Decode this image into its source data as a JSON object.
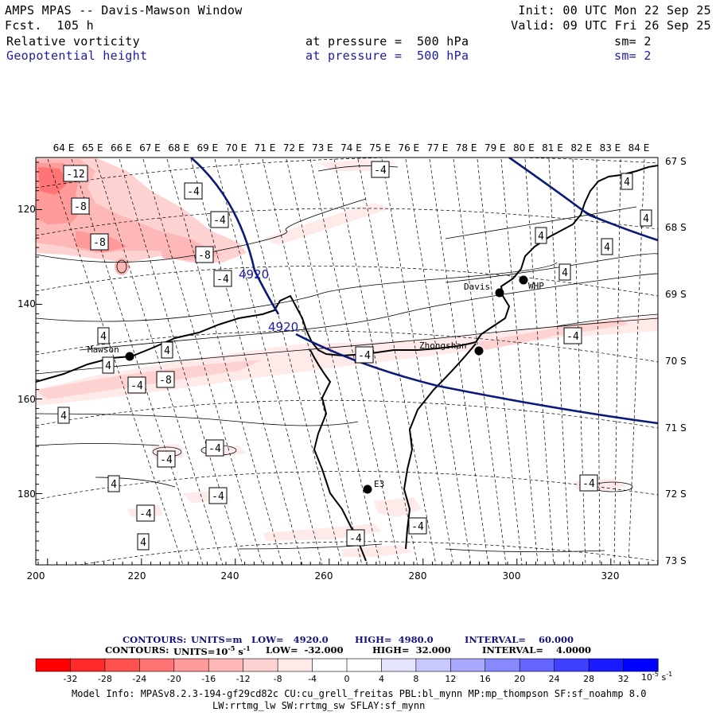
{
  "header": {
    "title": "AMPS MPAS -- Davis-Mawson Window",
    "forecast": "Fcst.  105 h",
    "init": "Init: 00 UTC Mon 22 Sep 25",
    "valid": "Valid: 09 UTC Fri 26 Sep 25",
    "field1": {
      "name": "Relative vorticity",
      "level": "at pressure =  500 hPa",
      "smooth": "sm= 2"
    },
    "field2": {
      "name": "Geopotential height",
      "level": "at pressure =  500 hPa",
      "smooth": "sm= 2"
    }
  },
  "map": {
    "top_longitudes": [
      "64 E",
      "65 E",
      "66 E",
      "67 E",
      "68 E",
      "69 E",
      "70 E",
      "71 E",
      "72 E",
      "73 E",
      "74 E",
      "75 E",
      "76 E",
      "77 E",
      "78 E",
      "79 E",
      "80 E",
      "81 E",
      "82 E",
      "83 E",
      "84 E"
    ],
    "right_latitudes": [
      "67 S",
      "68 S",
      "69 S",
      "70 S",
      "71 S",
      "72 S",
      "73 S"
    ],
    "left_ticks": [
      "120",
      "140",
      "160",
      "180"
    ],
    "bottom_ticks": [
      "200",
      "220",
      "240",
      "260",
      "280",
      "300",
      "320"
    ],
    "stations": [
      {
        "name": "Davis"
      },
      {
        "name": "WHP"
      },
      {
        "name": "Mawson"
      },
      {
        "name": "Zhongshan"
      },
      {
        "name": "E3"
      }
    ],
    "height_labels": [
      "4920",
      "4920"
    ],
    "vort_labels": [
      "-12",
      "-8",
      "-8",
      "-8",
      "-4",
      "-4",
      "-4",
      "-4",
      "-4",
      "-4",
      "-4",
      "-4",
      "-4",
      "-4",
      "-4",
      "-4",
      "-4",
      "-8",
      "4",
      "4",
      "4",
      "4",
      "4",
      "4",
      "4",
      "4",
      "4",
      "4",
      "-4",
      "4"
    ],
    "colors": {
      "coast": "#000000",
      "height": "#0b1a7a",
      "neg_strong": "#ff3030",
      "neg_weak": "#fde4e4"
    }
  },
  "legend": {
    "height_line": {
      "contours": "CONTOURS:",
      "units": "UNITS=m",
      "low": "LOW=   4920.0",
      "high": "HIGH=  4980.0",
      "interval": "INTERVAL=    60.000"
    },
    "vort_line": {
      "contours": "CONTOURS:",
      "units": "UNITS=10",
      "exp": "-5",
      "unit_s": " s",
      "exp2": "-1",
      "low": "LOW=  -32.000",
      "high": "HIGH=  32.000",
      "interval": "INTERVAL=    4.0000"
    },
    "bins": [
      {
        "label": "-32",
        "color": "#ff0000"
      },
      {
        "label": "-28",
        "color": "#ff2b2b"
      },
      {
        "label": "-24",
        "color": "#ff5050"
      },
      {
        "label": "-20",
        "color": "#ff7474"
      },
      {
        "label": "-16",
        "color": "#ff9a9a"
      },
      {
        "label": "-12",
        "color": "#ffb8b8"
      },
      {
        "label": "-8",
        "color": "#ffd2d2"
      },
      {
        "label": "-4",
        "color": "#ffeaea"
      },
      {
        "label": "0",
        "color": "#ffffff"
      },
      {
        "label": "4",
        "color": "#ffffff"
      },
      {
        "label": "8",
        "color": "#e4e4ff"
      },
      {
        "label": "12",
        "color": "#c8c8ff"
      },
      {
        "label": "16",
        "color": "#a8a8ff"
      },
      {
        "label": "20",
        "color": "#8888ff"
      },
      {
        "label": "24",
        "color": "#6464ff"
      },
      {
        "label": "28",
        "color": "#4040ff"
      },
      {
        "label": "32",
        "color": "#1a1aff"
      },
      {
        "label": "",
        "color": "#0000ff"
      }
    ],
    "units_label": "10",
    "units_exp": "-5",
    "units_s": " s",
    "units_exp2": "-1"
  },
  "model_info": {
    "line1": "Model Info: MPASv8.2.3-194-gf29cd82c CU:cu_grell_freitas PBL:bl_mynn MP:mp_thompson SF:sf_noahmp 8.0",
    "line2": "LW:rrtmg_lw SW:rrtmg_sw SFLAY:sf_mynn"
  }
}
